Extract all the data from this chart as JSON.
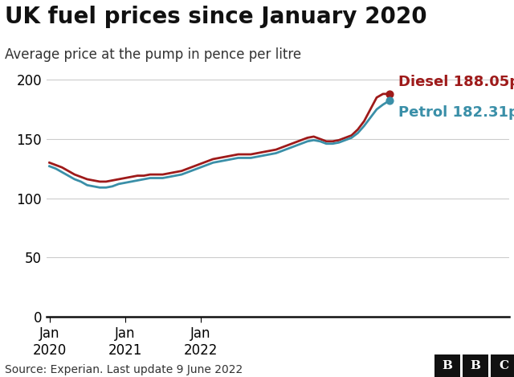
{
  "title": "UK fuel prices since January 2020",
  "subtitle": "Average price at the pump in pence per litre",
  "source": "Source: Experian. Last update 9 June 2022",
  "diesel_label": "Diesel 188.05p",
  "petrol_label": "Petrol 182.31p",
  "diesel_color": "#9e1a1a",
  "petrol_color": "#3a8fa8",
  "ylim": [
    0,
    210
  ],
  "yticks": [
    0,
    50,
    100,
    150,
    200
  ],
  "background_color": "#ffffff",
  "grid_color": "#cccccc",
  "title_fontsize": 20,
  "subtitle_fontsize": 12,
  "tick_fontsize": 12,
  "annotation_fontsize": 13,
  "source_fontsize": 10,
  "diesel_data": [
    130,
    128,
    126,
    123,
    120,
    118,
    116,
    115,
    114,
    114,
    115,
    116,
    117,
    118,
    119,
    119,
    120,
    120,
    120,
    121,
    122,
    123,
    125,
    127,
    129,
    131,
    133,
    134,
    135,
    136,
    137,
    137,
    137,
    138,
    139,
    140,
    141,
    143,
    145,
    147,
    149,
    151,
    152,
    150,
    148,
    148,
    149,
    151,
    153,
    158,
    165,
    175,
    185,
    188,
    188.05
  ],
  "petrol_data": [
    127,
    125,
    122,
    119,
    116,
    114,
    111,
    110,
    109,
    109,
    110,
    112,
    113,
    114,
    115,
    116,
    117,
    117,
    117,
    118,
    119,
    120,
    122,
    124,
    126,
    128,
    130,
    131,
    132,
    133,
    134,
    134,
    134,
    135,
    136,
    137,
    138,
    140,
    142,
    144,
    146,
    148,
    149,
    148,
    146,
    146,
    147,
    149,
    151,
    155,
    161,
    168,
    175,
    179,
    182.31
  ],
  "n_months": 55,
  "x_tick_positions": [
    0,
    12,
    24
  ],
  "x_tick_labels": [
    "Jan\n2020",
    "Jan\n2021",
    "Jan\n2022"
  ]
}
